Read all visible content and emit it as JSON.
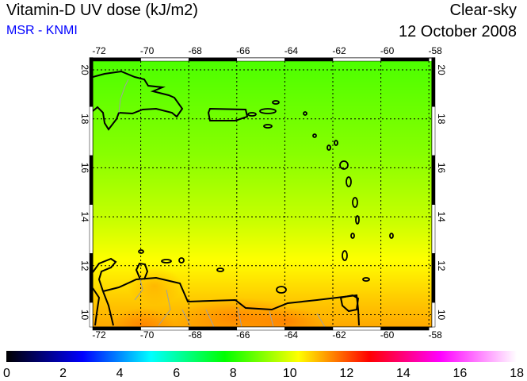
{
  "header": {
    "title": "Vitamin-D UV dose (kJ/m2)",
    "subtitle": "MSR - KNMI",
    "sky_condition": "Clear-sky",
    "date": "12 October 2008"
  },
  "map": {
    "region": "Caribbean",
    "lon_range": [
      -72,
      -58
    ],
    "lat_range": [
      9.5,
      20.5
    ],
    "lon_ticks": [
      "-72",
      "-70",
      "-68",
      "-66",
      "-64",
      "-62",
      "-60",
      "-58"
    ],
    "lat_ticks": [
      "20",
      "18",
      "16",
      "14",
      "12",
      "10"
    ],
    "colors": {
      "coast": "#000000",
      "borders": "#a0a0a0",
      "grid": "#000000"
    }
  },
  "colorbar": {
    "min": 0,
    "max": 18,
    "labels": [
      "0",
      "2",
      "4",
      "6",
      "8",
      "10",
      "12",
      "14",
      "16",
      "18"
    ],
    "stops": [
      {
        "value": 0,
        "color": "#000000"
      },
      {
        "value": 2.7,
        "color": "#0000ff"
      },
      {
        "value": 5.1,
        "color": "#00ffff"
      },
      {
        "value": 7.7,
        "color": "#00ff00"
      },
      {
        "value": 10.3,
        "color": "#ffff00"
      },
      {
        "value": 12.8,
        "color": "#ff0000"
      },
      {
        "value": 15.3,
        "color": "#ff00ff"
      },
      {
        "value": 18,
        "color": "#ffffff"
      }
    ]
  }
}
